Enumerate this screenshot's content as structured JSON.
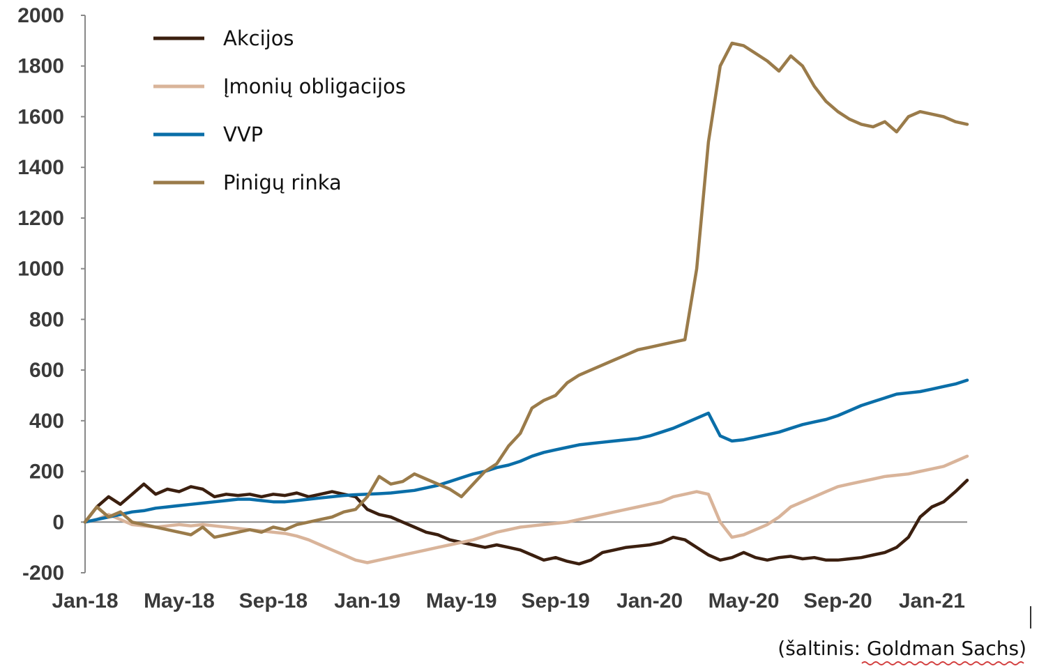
{
  "chart_data": {
    "type": "line",
    "title": "",
    "xlabel": "",
    "ylabel": "",
    "ylim": [
      -200,
      2000
    ],
    "yticks": [
      2000,
      1800,
      1600,
      1400,
      1200,
      1000,
      800,
      600,
      400,
      200,
      0,
      -200
    ],
    "xlim": [
      0,
      37.5
    ],
    "xticks": [
      {
        "label": "Jan-18",
        "x": 0
      },
      {
        "label": "May-18",
        "x": 4
      },
      {
        "label": "Sep-18",
        "x": 8
      },
      {
        "label": "Jan-19",
        "x": 12
      },
      {
        "label": "May-19",
        "x": 16
      },
      {
        "label": "Sep-19",
        "x": 20
      },
      {
        "label": "Jan-20",
        "x": 24
      },
      {
        "label": "May-20",
        "x": 28
      },
      {
        "label": "Sep-20",
        "x": 32
      },
      {
        "label": "Jan-21",
        "x": 36
      }
    ],
    "legend_position": "top-left",
    "series": [
      {
        "name": "Akcijos",
        "color": "#3b1f0f",
        "x": [
          0,
          0.5,
          1,
          1.5,
          2,
          2.5,
          3,
          3.5,
          4,
          4.5,
          5,
          5.5,
          6,
          6.5,
          7,
          7.5,
          8,
          8.5,
          9,
          9.5,
          10,
          10.5,
          11,
          11.5,
          12,
          12.5,
          13,
          13.5,
          14,
          14.5,
          15,
          15.5,
          16,
          16.5,
          17,
          17.5,
          18,
          18.5,
          19,
          19.5,
          20,
          20.5,
          21,
          21.5,
          22,
          22.5,
          23,
          23.5,
          24,
          24.5,
          25,
          25.5,
          26,
          26.5,
          27,
          27.5,
          28,
          28.5,
          29,
          29.5,
          30,
          30.5,
          31,
          31.5,
          32,
          32.5,
          33,
          33.5,
          34,
          34.5,
          35,
          35.5,
          36,
          36.5,
          37,
          37.5
        ],
        "values": [
          0,
          60,
          100,
          70,
          110,
          150,
          110,
          130,
          120,
          140,
          130,
          100,
          110,
          105,
          110,
          100,
          110,
          105,
          115,
          100,
          110,
          120,
          110,
          100,
          50,
          30,
          20,
          0,
          -20,
          -40,
          -50,
          -70,
          -80,
          -90,
          -100,
          -90,
          -100,
          -110,
          -130,
          -150,
          -140,
          -155,
          -165,
          -150,
          -120,
          -110,
          -100,
          -95,
          -90,
          -80,
          -60,
          -70,
          -100,
          -130,
          -150,
          -140,
          -120,
          -140,
          -150,
          -140,
          -135,
          -145,
          -140,
          -150,
          -150,
          -145,
          -140,
          -130,
          -120,
          -100,
          -60,
          20,
          60,
          80,
          120,
          165
        ]
      },
      {
        "name": "Įmonių obligacijos",
        "color": "#d9b49a",
        "x": [
          0,
          0.5,
          1,
          1.5,
          2,
          2.5,
          3,
          3.5,
          4,
          4.5,
          5,
          5.5,
          6,
          6.5,
          7,
          7.5,
          8,
          8.5,
          9,
          9.5,
          10,
          10.5,
          11,
          11.5,
          12,
          12.5,
          13,
          13.5,
          14,
          14.5,
          15,
          15.5,
          16,
          16.5,
          17,
          17.5,
          18,
          18.5,
          19,
          19.5,
          20,
          20.5,
          21,
          21.5,
          22,
          22.5,
          23,
          23.5,
          24,
          24.5,
          25,
          25.5,
          26,
          26.5,
          27,
          27.5,
          28,
          28.5,
          29,
          29.5,
          30,
          30.5,
          31,
          31.5,
          32,
          32.5,
          33,
          33.5,
          34,
          34.5,
          35,
          35.5,
          36,
          36.5,
          37,
          37.5
        ],
        "values": [
          0,
          10,
          30,
          10,
          -10,
          -15,
          -20,
          -15,
          -10,
          -15,
          -10,
          -15,
          -20,
          -25,
          -30,
          -35,
          -40,
          -45,
          -55,
          -70,
          -90,
          -110,
          -130,
          -150,
          -160,
          -150,
          -140,
          -130,
          -120,
          -110,
          -100,
          -90,
          -80,
          -70,
          -55,
          -40,
          -30,
          -20,
          -15,
          -10,
          -5,
          0,
          10,
          20,
          30,
          40,
          50,
          60,
          70,
          80,
          100,
          110,
          120,
          110,
          0,
          -60,
          -50,
          -30,
          -10,
          20,
          60,
          80,
          100,
          120,
          140,
          150,
          160,
          170,
          180,
          185,
          190,
          200,
          210,
          220,
          240,
          260
        ]
      },
      {
        "name": "VVP",
        "color": "#0a6ea8",
        "x": [
          0,
          0.5,
          1,
          1.5,
          2,
          2.5,
          3,
          3.5,
          4,
          4.5,
          5,
          5.5,
          6,
          6.5,
          7,
          7.5,
          8,
          8.5,
          9,
          9.5,
          10,
          10.5,
          11,
          11.5,
          12,
          12.5,
          13,
          13.5,
          14,
          14.5,
          15,
          15.5,
          16,
          16.5,
          17,
          17.5,
          18,
          18.5,
          19,
          19.5,
          20,
          20.5,
          21,
          21.5,
          22,
          22.5,
          23,
          23.5,
          24,
          24.5,
          25,
          25.5,
          26,
          26.5,
          27,
          27.5,
          28,
          28.5,
          29,
          29.5,
          30,
          30.5,
          31,
          31.5,
          32,
          32.5,
          33,
          33.5,
          34,
          34.5,
          35,
          35.5,
          36,
          36.5,
          37,
          37.5
        ],
        "values": [
          0,
          10,
          20,
          30,
          40,
          45,
          55,
          60,
          65,
          70,
          75,
          80,
          85,
          90,
          90,
          85,
          80,
          80,
          85,
          90,
          95,
          100,
          105,
          108,
          110,
          112,
          115,
          120,
          125,
          135,
          145,
          160,
          175,
          190,
          200,
          215,
          225,
          240,
          260,
          275,
          285,
          295,
          305,
          310,
          315,
          320,
          325,
          330,
          340,
          355,
          370,
          390,
          410,
          430,
          340,
          320,
          325,
          335,
          345,
          355,
          370,
          385,
          395,
          405,
          420,
          440,
          460,
          475,
          490,
          505,
          510,
          515,
          525,
          535,
          545,
          560
        ]
      },
      {
        "name": "Pinigų rinka",
        "color": "#9a7b4a",
        "x": [
          0,
          0.5,
          1,
          1.5,
          2,
          2.5,
          3,
          3.5,
          4,
          4.5,
          5,
          5.5,
          6,
          6.5,
          7,
          7.5,
          8,
          8.5,
          9,
          9.5,
          10,
          10.5,
          11,
          11.5,
          12,
          12.5,
          13,
          13.5,
          14,
          14.5,
          15,
          15.5,
          16,
          16.5,
          17,
          17.5,
          18,
          18.5,
          19,
          19.5,
          20,
          20.5,
          21,
          21.5,
          22,
          22.5,
          23,
          23.5,
          24,
          24.5,
          25,
          25.5,
          26,
          26.5,
          27,
          27.5,
          28,
          28.5,
          29,
          29.5,
          30,
          30.5,
          31,
          31.5,
          32,
          32.5,
          33,
          33.5,
          34,
          34.5,
          35,
          35.5,
          36,
          36.5,
          37,
          37.5
        ],
        "values": [
          0,
          60,
          20,
          40,
          0,
          -10,
          -20,
          -30,
          -40,
          -50,
          -20,
          -60,
          -50,
          -40,
          -30,
          -40,
          -20,
          -30,
          -10,
          0,
          10,
          20,
          40,
          50,
          100,
          180,
          150,
          160,
          190,
          170,
          150,
          130,
          100,
          150,
          200,
          230,
          300,
          350,
          450,
          480,
          500,
          550,
          580,
          600,
          620,
          640,
          660,
          680,
          690,
          700,
          710,
          720,
          1000,
          1500,
          1800,
          1890,
          1880,
          1850,
          1820,
          1780,
          1840,
          1800,
          1720,
          1660,
          1620,
          1590,
          1570,
          1560,
          1580,
          1540,
          1600,
          1620,
          1610,
          1600,
          1580,
          1570
        ]
      }
    ]
  },
  "source_text": "(šaltinis: Goldman Sachs)"
}
